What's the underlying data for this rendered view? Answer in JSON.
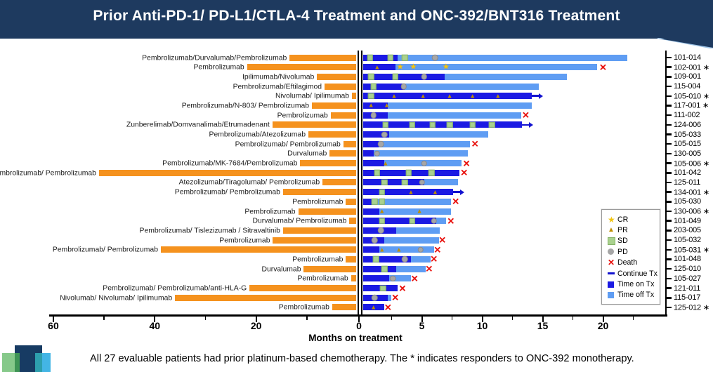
{
  "header": {
    "title": "Prior Anti-PD-1/ PD-L1/CTLA-4 Treatment and ONC-392/BNT316 Treatment"
  },
  "footer": {
    "note": "All 27 evaluable patients had prior platinum-based chemotherapy.  The * indicates responders to ONC-392 monotherapy."
  },
  "colors": {
    "banner": "#1e3a5f",
    "prior_tx": "#f5921e",
    "time_on_tx": "#1b1ae3",
    "time_off_tx": "#5f9df3",
    "cr": "#f2c511",
    "pr": "#bf8f00",
    "sd": "#a9d18e",
    "pd": "#a6a6a6",
    "death": "#e8100c",
    "continue_tx": "#1212cf"
  },
  "legend": {
    "items": [
      {
        "type": "CR",
        "label": "CR"
      },
      {
        "type": "PR",
        "label": "PR"
      },
      {
        "type": "SD",
        "label": "SD"
      },
      {
        "type": "PD",
        "label": "PD"
      },
      {
        "type": "DEATH",
        "label": "Death"
      },
      {
        "type": "CONT",
        "label": "Continue Tx"
      },
      {
        "type": "ON",
        "label": "Time on Tx"
      },
      {
        "type": "OFF",
        "label": "Time off Tx"
      }
    ]
  },
  "chart_data": {
    "type": "bar",
    "subtype": "swimmer-plot-bidirectional",
    "xlabel": "Months on treatment",
    "left_axis": {
      "direction": "prior treatment (months, reversed)",
      "major_ticks": [
        60,
        40,
        20
      ],
      "minor_ticks": [
        50,
        30,
        10
      ],
      "max": 60
    },
    "zero_label": "0",
    "right_axis": {
      "direction": "months on ONC-392/BNT316 treatment",
      "major_ticks": [
        5,
        10,
        15,
        20
      ],
      "minor_ticks": [
        2.5,
        7.5,
        12.5,
        17.5,
        22.5
      ],
      "max": 25
    },
    "patients": [
      {
        "id": "101-014",
        "responder": false,
        "prior_tx": "Pembrolizumab/Durvalumab/Pembrolizumab",
        "prior_months": 13.4,
        "months_on_tx": 3.0,
        "months_total": 22.0,
        "markers": [
          {
            "type": "SD",
            "month": 0.7
          },
          {
            "type": "SD",
            "month": 2.4
          },
          {
            "type": "SD",
            "month": 3.6
          },
          {
            "type": "PD",
            "month": 6.1
          }
        ],
        "death_month": null,
        "continue_tx": false
      },
      {
        "id": "102-001",
        "responder": true,
        "prior_tx": "Pembrolizumab",
        "prior_months": 21.8,
        "months_on_tx": 2.8,
        "months_total": 19.5,
        "markers": [
          {
            "type": "PR",
            "month": 1.3
          },
          {
            "type": "CR",
            "month": 3.2
          },
          {
            "type": "CR",
            "month": 4.3
          },
          {
            "type": "CR",
            "month": 7.0
          }
        ],
        "death_month": 20.0,
        "continue_tx": false
      },
      {
        "id": "109-001",
        "responder": false,
        "prior_tx": "Ipilimumab/Nivolumab",
        "prior_months": 8.0,
        "months_on_tx": 6.9,
        "months_total": 17.0,
        "markers": [
          {
            "type": "SD",
            "month": 0.8
          },
          {
            "type": "SD",
            "month": 2.8
          },
          {
            "type": "PD",
            "month": 5.2
          }
        ],
        "death_month": null,
        "continue_tx": false
      },
      {
        "id": "115-004",
        "responder": false,
        "prior_tx": "Pembrolizumab/Eftilagimod",
        "prior_months": 6.5,
        "months_on_tx": 3.6,
        "months_total": 14.7,
        "markers": [
          {
            "type": "SD",
            "month": 1.0
          },
          {
            "type": "PD",
            "month": 3.5
          }
        ],
        "death_month": null,
        "continue_tx": false
      },
      {
        "id": "105-010",
        "responder": true,
        "prior_tx": "Nivolumab/ Ipilimumab",
        "prior_months": 1.1,
        "months_on_tx": 14.1,
        "months_total": 14.1,
        "markers": [
          {
            "type": "SD",
            "month": 0.8
          },
          {
            "type": "PR",
            "month": 2.7
          },
          {
            "type": "PR",
            "month": 5.1
          },
          {
            "type": "PR",
            "month": 7.3
          },
          {
            "type": "PR",
            "month": 9.2
          },
          {
            "type": "PR",
            "month": 11.3
          }
        ],
        "death_month": null,
        "continue_tx": true
      },
      {
        "id": "117-001",
        "responder": true,
        "prior_tx": "Pembrolizumab/N-803/ Pembrolizumab",
        "prior_months": 9.0,
        "months_on_tx": 2.2,
        "months_total": 14.1,
        "markers": [
          {
            "type": "PR",
            "month": 0.8
          },
          {
            "type": "PR",
            "month": 2.1
          }
        ],
        "death_month": null,
        "continue_tx": false
      },
      {
        "id": "111-002",
        "responder": false,
        "prior_tx": "Pembrolizumab",
        "prior_months": 5.3,
        "months_on_tx": 2.2,
        "months_total": 13.2,
        "markers": [
          {
            "type": "PD",
            "month": 1.0
          }
        ],
        "death_month": 13.6,
        "continue_tx": false
      },
      {
        "id": "124-006",
        "responder": false,
        "prior_tx": "Zunberelimab/Domvanalimab/Etrumadenant",
        "prior_months": 16.8,
        "months_on_tx": 13.3,
        "months_total": 13.3,
        "markers": [
          {
            "type": "SD",
            "month": 2.0
          },
          {
            "type": "SD",
            "month": 4.2
          },
          {
            "type": "SD",
            "month": 5.9
          },
          {
            "type": "SD",
            "month": 7.3
          },
          {
            "type": "SD",
            "month": 9.2
          },
          {
            "type": "SD",
            "month": 10.8
          }
        ],
        "death_month": null,
        "continue_tx": true
      },
      {
        "id": "105-033",
        "responder": false,
        "prior_tx": "Pembrolizumab/Atezolizumab",
        "prior_months": 9.7,
        "months_on_tx": 2.3,
        "months_total": 10.5,
        "markers": [
          {
            "type": "PD",
            "month": 1.9
          }
        ],
        "death_month": null,
        "continue_tx": false
      },
      {
        "id": "105-015",
        "responder": false,
        "prior_tx": "Pembrolizumab/ Pembrolizumab",
        "prior_months": 2.8,
        "months_on_tx": 1.4,
        "months_total": 9.0,
        "markers": [
          {
            "type": "PD",
            "month": 1.6
          }
        ],
        "death_month": 9.4,
        "continue_tx": false
      },
      {
        "id": "130-005",
        "responder": false,
        "prior_tx": "Durvalumab",
        "prior_months": 5.5,
        "months_on_tx": 1.0,
        "months_total": 8.8,
        "markers": [
          {
            "type": "PD",
            "month": 1.3
          }
        ],
        "death_month": null,
        "continue_tx": false
      },
      {
        "id": "105-006",
        "responder": true,
        "prior_tx": "Pembrolizumab/MK-7684/Pembrolizumab",
        "prior_months": 11.3,
        "months_on_tx": 1.9,
        "months_total": 8.3,
        "markers": [
          {
            "type": "PR",
            "month": 2.0
          },
          {
            "type": "PD",
            "month": 5.2
          }
        ],
        "death_month": 8.7,
        "continue_tx": false
      },
      {
        "id": "101-042",
        "responder": false,
        "prior_tx": "Pembrolizumab/ Pembrolizumab",
        "prior_months": 51.0,
        "months_on_tx": 8.1,
        "months_total": 8.1,
        "markers": [
          {
            "type": "SD",
            "month": 1.3
          },
          {
            "type": "SD",
            "month": 3.9
          },
          {
            "type": "SD",
            "month": 5.8
          }
        ],
        "death_month": 8.5,
        "continue_tx": false
      },
      {
        "id": "125-011",
        "responder": false,
        "prior_tx": "Atezolizumab/Tiragolumab/ Pembrolizumab",
        "prior_months": 6.9,
        "months_on_tx": 5.2,
        "months_total": 8.0,
        "markers": [
          {
            "type": "SD",
            "month": 1.9
          },
          {
            "type": "SD",
            "month": 3.6
          },
          {
            "type": "PD",
            "month": 5.0
          }
        ],
        "death_month": null,
        "continue_tx": false
      },
      {
        "id": "134-001",
        "responder": true,
        "prior_tx": "Pembrolizumab/ Pembrolizumab",
        "prior_months": 14.7,
        "months_on_tx": 7.6,
        "months_total": 7.6,
        "markers": [
          {
            "type": "SD",
            "month": 1.7
          },
          {
            "type": "PR",
            "month": 4.1
          },
          {
            "type": "PR",
            "month": 6.1
          }
        ],
        "death_month": null,
        "continue_tx": true
      },
      {
        "id": "105-030",
        "responder": false,
        "prior_tx": "Pembrolizumab",
        "prior_months": 2.3,
        "months_on_tx": 0.9,
        "months_total": 7.4,
        "markers": [
          {
            "type": "SD",
            "month": 1.1
          },
          {
            "type": "SD",
            "month": 1.7
          }
        ],
        "death_month": 7.8,
        "continue_tx": false
      },
      {
        "id": "130-006",
        "responder": true,
        "prior_tx": "Pembrolizumab",
        "prior_months": 11.7,
        "months_on_tx": 1.5,
        "months_total": 7.4,
        "markers": [
          {
            "type": "PR",
            "month": 1.7
          },
          {
            "type": "PR",
            "month": 4.8
          }
        ],
        "death_month": null,
        "continue_tx": false
      },
      {
        "id": "101-049",
        "responder": false,
        "prior_tx": "Durvalumab/ Pembrolizumab",
        "prior_months": 1.6,
        "months_on_tx": 6.2,
        "months_total": 7.0,
        "markers": [
          {
            "type": "SD",
            "month": 1.7
          },
          {
            "type": "SD",
            "month": 4.2
          },
          {
            "type": "PD",
            "month": 6.0
          }
        ],
        "death_month": 7.4,
        "continue_tx": false
      },
      {
        "id": "203-005",
        "responder": false,
        "prior_tx": "Pembrolizumab/ Tislezizumab / Sitravaltinib",
        "prior_months": 14.7,
        "months_on_tx": 2.9,
        "months_total": 6.5,
        "markers": [
          {
            "type": "PD",
            "month": 1.6
          }
        ],
        "death_month": null,
        "continue_tx": false
      },
      {
        "id": "105-032",
        "responder": false,
        "prior_tx": "Pembrolizumab",
        "prior_months": 16.7,
        "months_on_tx": 1.9,
        "months_total": 6.4,
        "markers": [
          {
            "type": "PD",
            "month": 1.1
          }
        ],
        "death_month": 6.7,
        "continue_tx": false
      },
      {
        "id": "105-031",
        "responder": true,
        "prior_tx": "Pembrolizumab/ Pembrolizumab",
        "prior_months": 38.8,
        "months_on_tx": 1.5,
        "months_total": 6.0,
        "markers": [
          {
            "type": "PR",
            "month": 1.7
          },
          {
            "type": "PR",
            "month": 3.1
          },
          {
            "type": "PD",
            "month": 4.9
          }
        ],
        "death_month": 6.3,
        "continue_tx": false
      },
      {
        "id": "101-048",
        "responder": false,
        "prior_tx": "Pembrolizumab",
        "prior_months": 2.3,
        "months_on_tx": 4.1,
        "months_total": 5.7,
        "markers": [
          {
            "type": "SD",
            "month": 1.2
          },
          {
            "type": "PD",
            "month": 3.6
          }
        ],
        "death_month": 6.0,
        "continue_tx": false
      },
      {
        "id": "125-010",
        "responder": false,
        "prior_tx": "Durvalumab",
        "prior_months": 10.6,
        "months_on_tx": 2.9,
        "months_total": 5.3,
        "markers": [
          {
            "type": "SD",
            "month": 1.9
          }
        ],
        "death_month": 5.6,
        "continue_tx": false
      },
      {
        "id": "105-027",
        "responder": false,
        "prior_tx": "Pembrolizumab",
        "prior_months": 1.3,
        "months_on_tx": 2.3,
        "months_total": 4.1,
        "markers": [
          {
            "type": "PD",
            "month": 2.6
          }
        ],
        "death_month": 4.4,
        "continue_tx": false
      },
      {
        "id": "121-011",
        "responder": false,
        "prior_tx": "Pembrolizumab/ Pembrolizumab/anti-HLA-G",
        "prior_months": 21.3,
        "months_on_tx": 3.0,
        "months_total": 3.0,
        "markers": [
          {
            "type": "SD",
            "month": 1.8
          }
        ],
        "death_month": 3.4,
        "continue_tx": false
      },
      {
        "id": "115-017",
        "responder": false,
        "prior_tx": "Nivolumab/ Nivolumab/ Ipilimumab",
        "prior_months": 36.0,
        "months_on_tx": 2.2,
        "months_total": 2.5,
        "markers": [
          {
            "type": "PD",
            "month": 1.1
          }
        ],
        "death_month": 2.8,
        "continue_tx": false
      },
      {
        "id": "125-012",
        "responder": true,
        "prior_tx": "Pembrolizumab",
        "prior_months": 5.0,
        "months_on_tx": 1.9,
        "months_total": 1.9,
        "markers": [
          {
            "type": "PR",
            "month": 1.0
          }
        ],
        "death_month": 2.2,
        "continue_tx": false
      }
    ]
  }
}
